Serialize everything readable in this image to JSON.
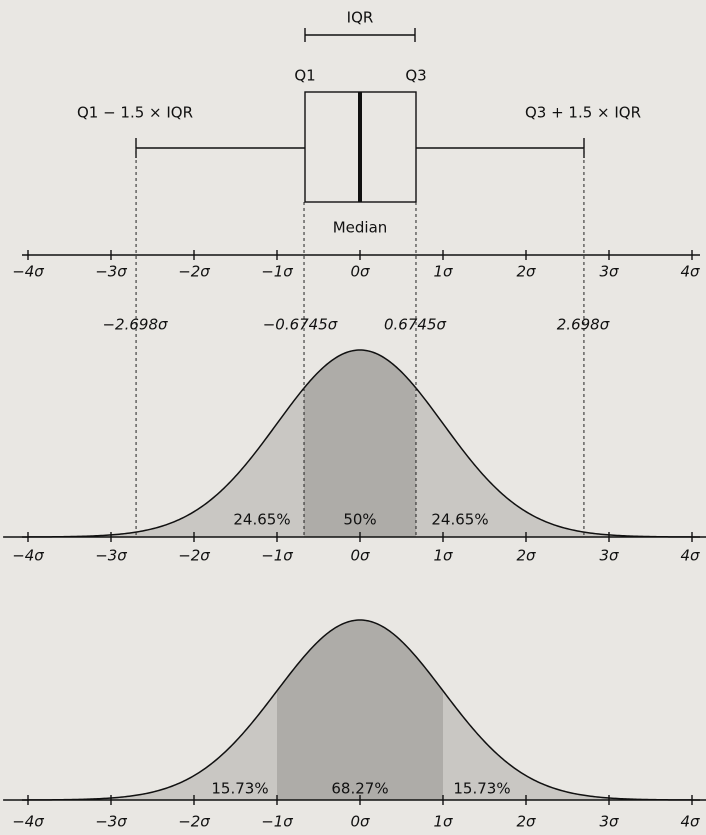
{
  "box_plot": {
    "iqr_label": "IQR",
    "q1_label": "Q1",
    "q3_label": "Q3",
    "lower_whisker_label": "Q1 − 1.5 × IQR",
    "upper_whisker_label": "Q3 + 1.5 × IQR",
    "median_label": "Median"
  },
  "top_axis": {
    "tick_labels": [
      "−4σ",
      "−3σ",
      "−2σ",
      "−1σ",
      "0σ",
      "1σ",
      "2σ",
      "3σ",
      "4σ"
    ]
  },
  "middle_panel": {
    "boundary_labels": [
      "−2.698σ",
      "−0.6745σ",
      "0.6745σ",
      "2.698σ"
    ],
    "area_labels": [
      "24.65%",
      "50%",
      "24.65%"
    ],
    "tick_labels": [
      "−4σ",
      "−3σ",
      "−2σ",
      "−1σ",
      "0σ",
      "1σ",
      "2σ",
      "3σ",
      "4σ"
    ]
  },
  "bottom_panel": {
    "area_labels": [
      "15.73%",
      "68.27%",
      "15.73%"
    ],
    "tick_labels": [
      "−4σ",
      "−3σ",
      "−2σ",
      "−1σ",
      "0σ",
      "1σ",
      "2σ",
      "3σ",
      "4σ"
    ]
  }
}
